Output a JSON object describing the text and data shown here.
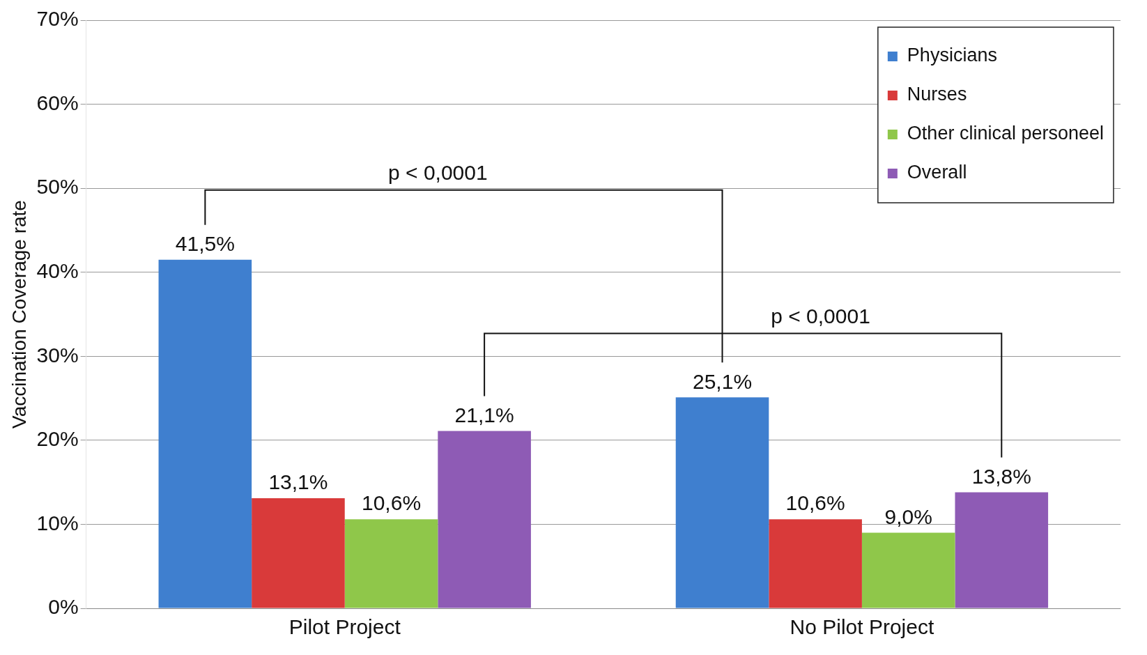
{
  "chart_data": {
    "type": "bar",
    "ylabel": "Vaccination Coverage rate",
    "categories": [
      "Pilot Project",
      "No Pilot Project"
    ],
    "series": [
      {
        "name": "Physicians",
        "color": "#3f7fcf",
        "values": [
          41.5,
          25.1
        ],
        "value_labels": [
          "41,5%",
          "25,1%"
        ]
      },
      {
        "name": "Nurses",
        "color": "#d93a3a",
        "values": [
          13.1,
          10.6
        ],
        "value_labels": [
          "13,1%",
          "10,6%"
        ]
      },
      {
        "name": "Other clinical personeel",
        "color": "#8fc74a",
        "values": [
          10.6,
          9.0
        ],
        "value_labels": [
          "10,6%",
          "9,0%"
        ]
      },
      {
        "name": "Overall",
        "color": "#8e5bb5",
        "values": [
          21.1,
          13.8
        ],
        "value_labels": [
          "21,1%",
          "13,8%"
        ]
      }
    ],
    "ylim": [
      0,
      70
    ],
    "yticks": [
      {
        "value": 0,
        "label": "0%"
      },
      {
        "value": 10,
        "label": "10%"
      },
      {
        "value": 20,
        "label": "20%"
      },
      {
        "value": 30,
        "label": "30%"
      },
      {
        "value": 40,
        "label": "40%"
      },
      {
        "value": 50,
        "label": "50%"
      },
      {
        "value": 60,
        "label": "60%"
      },
      {
        "value": 70,
        "label": "70%"
      }
    ],
    "grid": "y",
    "legend": "top right",
    "annotations": [
      "p < 0,0001",
      "p < 0,0001"
    ]
  }
}
